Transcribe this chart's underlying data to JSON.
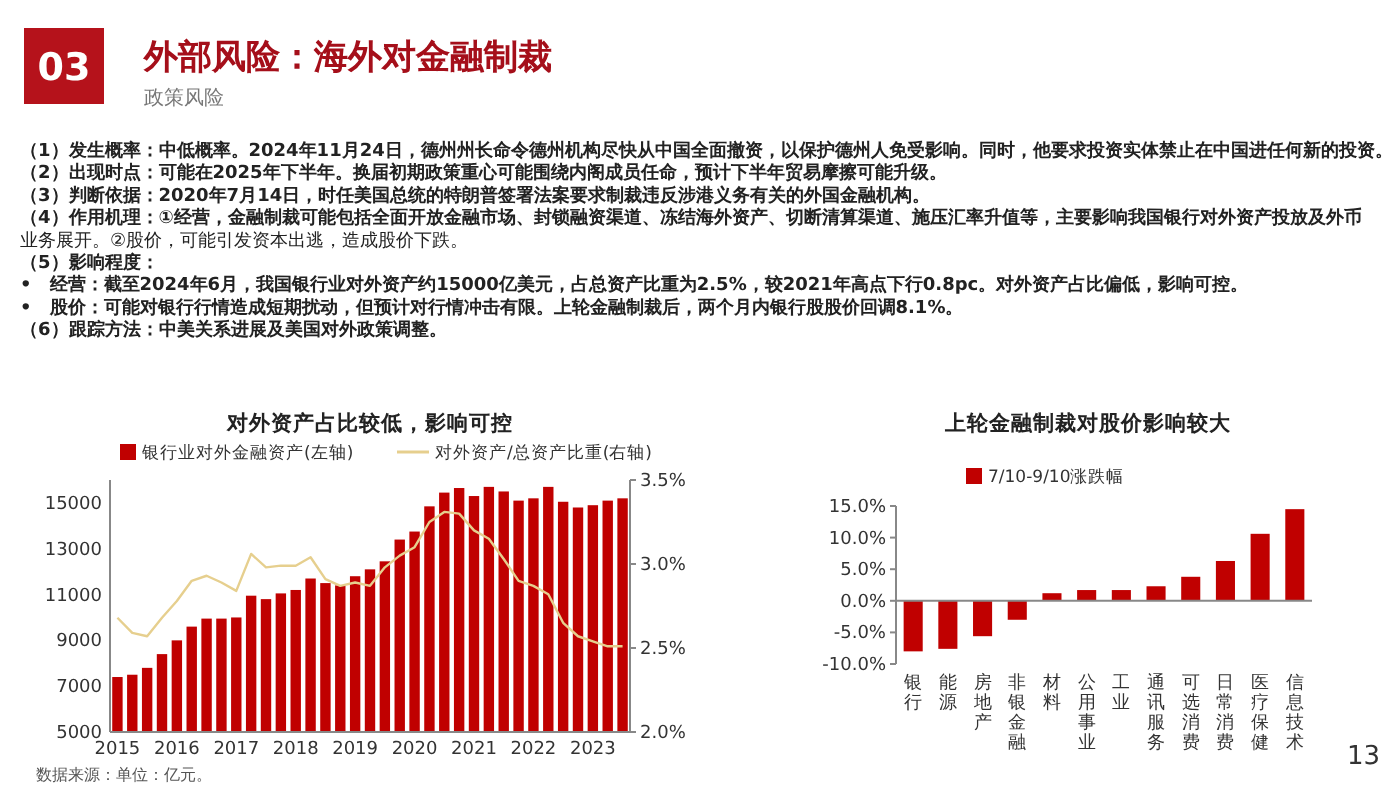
{
  "chart_data": [
    {
      "type": "other",
      "title": "外部风险：海外对金融制裁",
      "subtitle": "政策风险",
      "annotations": [
        "03",
        "（1）发生概率：中低概率。2024年11月24日，德州州长命令德州机构尽快从中国全面撤资，以保护德州人免受影响。同时，他要求投资实体禁止在中国进任何新的投资。",
        "（2）出现时点：可能在2025年下半年。换届初期政策重心可能围绕内阁成员任命，预计下半年贸易摩擦可能升级。",
        "（3）判断依据：2020年7月14日，时任美国总统的特朗普签署法案要求制裁违反涉港义务有关的外国金融机构。",
        "（4）作用机理：①经营，金融制裁可能包括全面开放金融市场、封锁融资渠道、冻结海外资产、切断清算渠道、施压汇率升值等，主要影响我国银行对外资产投放及外币业务展开。②股价，可能引发资本出逃，造成股价下跌。",
        "（5）影响程度：",
        "•　经营：截至2024年6月，我国银行业对外资产约15000亿美元，占总资产比重为2.5%，较2021年高点下行0.8pc。对外资产占比偏低，影响可控。",
        "•　股价：可能对银行行情造成短期扰动，但预计对行情冲击有限。上轮金融制裁后，两个月内银行股股价回调8.1%。",
        "（6）跟踪方法：中美关系进展及美国对外政策调整。",
        "13"
      ]
    },
    {
      "type": "bar",
      "title": "对外资产占比较低，影响可控",
      "legend": "top",
      "annotations": [
        "数据来源：单位：亿元。"
      ],
      "categories": [
        "2015",
        null,
        null,
        null,
        "2016",
        null,
        null,
        null,
        "2017",
        null,
        null,
        null,
        "2018",
        null,
        null,
        null,
        "2019",
        null,
        null,
        null,
        "2020",
        null,
        null,
        null,
        "2021",
        null,
        null,
        null,
        "2022",
        null,
        null,
        null,
        "2023",
        null,
        null
      ],
      "ylim": [
        5000,
        16000
      ],
      "yticks": [
        5000,
        7000,
        9000,
        11000,
        13000,
        15000
      ],
      "y2lim": [
        2.0,
        3.5
      ],
      "y2ticks": [
        {
          "value": 2.0,
          "label": "2.0%"
        },
        {
          "value": 2.5,
          "label": "2.5%"
        },
        {
          "value": 3.0,
          "label": "3.0%"
        },
        {
          "value": 3.5,
          "label": "3.5%"
        }
      ],
      "series": [
        {
          "name": "银行业对外金融资产(左轴)",
          "type": "bar",
          "color": "#c00000",
          "values": [
            7400,
            7500,
            7800,
            8400,
            9000,
            9600,
            9950,
            9950,
            10000,
            10950,
            10800,
            11050,
            11200,
            11700,
            11500,
            11400,
            11800,
            12100,
            12450,
            13400,
            13750,
            14850,
            15450,
            15650,
            15300,
            15700,
            15500,
            15100,
            15200,
            15700,
            15050,
            14800,
            14900,
            15100,
            15200
          ]
        },
        {
          "name": "对外资产/总资产比重(右轴)",
          "type": "line",
          "axis": "y2",
          "color": "#e6cf8e",
          "values": [
            2.68,
            2.59,
            2.57,
            2.68,
            2.78,
            2.9,
            2.93,
            2.89,
            2.84,
            3.06,
            2.98,
            2.99,
            2.99,
            3.04,
            2.91,
            2.87,
            2.89,
            2.87,
            2.98,
            3.05,
            3.1,
            3.25,
            3.31,
            3.3,
            3.2,
            3.15,
            3.03,
            2.9,
            2.87,
            2.82,
            2.65,
            2.57,
            2.54,
            2.51,
            2.51
          ]
        }
      ]
    },
    {
      "type": "bar",
      "title": "上轮金融制裁对股价影响较大",
      "legend": "top",
      "categories": [
        "银行",
        "能源",
        "房地产",
        "非银金融",
        "材料",
        "公用事业",
        "工业",
        "通讯服务",
        "可选消费",
        "日常消费",
        "医疗保健",
        "信息技术"
      ],
      "ylim": [
        -10,
        15
      ],
      "yticks": [
        {
          "value": -10,
          "label": "-10.0%"
        },
        {
          "value": -5,
          "label": "-5.0%"
        },
        {
          "value": 0,
          "label": "0.0%"
        },
        {
          "value": 5,
          "label": "5.0%"
        },
        {
          "value": 10,
          "label": "10.0%"
        },
        {
          "value": 15,
          "label": "15.0%"
        }
      ],
      "series": [
        {
          "name": "7/10-9/10涨跌幅",
          "color": "#c00000",
          "values": [
            -8.0,
            -7.6,
            -5.6,
            -3.0,
            1.2,
            1.7,
            1.7,
            2.3,
            3.8,
            6.3,
            10.6,
            14.5
          ]
        }
      ]
    }
  ]
}
